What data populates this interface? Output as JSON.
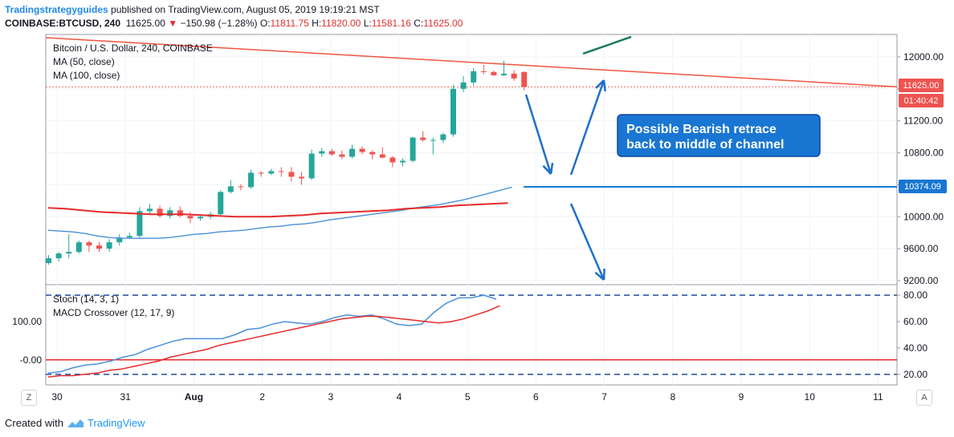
{
  "header": {
    "publisher": "Tradingstrategyguides",
    "published_text": "published on TradingView.com, August 05, 2019 19:19:21 MST",
    "symbol": "COINBASE:BTCUSD, 240",
    "last": "11625.00",
    "direction_icon": "down-triangle-icon",
    "change": "−150.98 (−1.28%)",
    "open_label": "O:",
    "open": "11811.75",
    "high_label": "H:",
    "high": "11820.00",
    "low_label": "L:",
    "low": "11581.16",
    "close_label": "C:",
    "close": "11625.00"
  },
  "legend": {
    "instrument": "Bitcoin / U.S. Dollar, 240, COINBASE",
    "ma50": "MA (50, close)",
    "ma100": "MA (100, close)",
    "stoch": "Stoch (14, 3, 1)",
    "macd": "MACD Crossover (12, 17, 9)"
  },
  "badges": {
    "price": "11625.00",
    "countdown": "01:40:42",
    "level": "10374.09"
  },
  "annotation": {
    "text_line1": "Possible Bearish retrace",
    "text_line2": "back to middle of channel"
  },
  "footer": {
    "created_with": "Created with",
    "brand": "TradingView"
  },
  "buttons": {
    "left": "Z",
    "right": "A"
  },
  "colors": {
    "up": "#26a69a",
    "down": "#ef5350",
    "ma50": "#4a90d9",
    "ma100": "#e52a2a",
    "trendline": "#f0553f",
    "level": "#1976d2",
    "annotation_bg": "#1976d2"
  },
  "chart_data": [
    {
      "type": "candlestick",
      "title": "Bitcoin / U.S. Dollar, 240, COINBASE",
      "y_axis_ticks": [
        "12000.00",
        "11600.00",
        "11200.00",
        "10800.00",
        "10400.00",
        "10000.00",
        "9600.00",
        "9200.00"
      ],
      "ylim": [
        9150,
        12280
      ],
      "x_axis_ticks": [
        "30",
        "31",
        "Aug",
        "2",
        "3",
        "4",
        "5",
        "6",
        "7",
        "8",
        "9",
        "10",
        "11"
      ],
      "candles": [
        [
          9420,
          9520,
          9400,
          9480
        ],
        [
          9480,
          9560,
          9440,
          9540
        ],
        [
          9540,
          9780,
          9480,
          9560
        ],
        [
          9560,
          9700,
          9540,
          9680
        ],
        [
          9680,
          9700,
          9560,
          9640
        ],
        [
          9640,
          9680,
          9560,
          9600
        ],
        [
          9600,
          9720,
          9560,
          9680
        ],
        [
          9680,
          9780,
          9640,
          9740
        ],
        [
          9740,
          9800,
          9720,
          9760
        ],
        [
          9760,
          10120,
          9740,
          10070
        ],
        [
          10070,
          10160,
          10040,
          10100
        ],
        [
          10100,
          10140,
          9990,
          10010
        ],
        [
          10010,
          10120,
          9980,
          10080
        ],
        [
          10080,
          10130,
          9990,
          10010
        ],
        [
          10010,
          10060,
          9920,
          9980
        ],
        [
          9980,
          10030,
          9950,
          10000
        ],
        [
          10000,
          10060,
          9970,
          10030
        ],
        [
          10030,
          10330,
          10020,
          10310
        ],
        [
          10310,
          10460,
          10290,
          10380
        ],
        [
          10380,
          10410,
          10330,
          10370
        ],
        [
          10370,
          10590,
          10350,
          10550
        ],
        [
          10550,
          10570,
          10500,
          10540
        ],
        [
          10540,
          10600,
          10520,
          10570
        ],
        [
          10570,
          10620,
          10500,
          10560
        ],
        [
          10560,
          10620,
          10440,
          10500
        ],
        [
          10500,
          10560,
          10400,
          10480
        ],
        [
          10480,
          10840,
          10460,
          10790
        ],
        [
          10790,
          10860,
          10750,
          10820
        ],
        [
          10820,
          10850,
          10760,
          10780
        ],
        [
          10780,
          10830,
          10720,
          10750
        ],
        [
          10750,
          10900,
          10730,
          10850
        ],
        [
          10850,
          10880,
          10780,
          10810
        ],
        [
          10810,
          10830,
          10720,
          10780
        ],
        [
          10780,
          10870,
          10730,
          10740
        ],
        [
          10740,
          10760,
          10620,
          10680
        ],
        [
          10680,
          10730,
          10630,
          10700
        ],
        [
          10700,
          11000,
          10680,
          10990
        ],
        [
          10990,
          11070,
          10940,
          10960
        ],
        [
          10960,
          10990,
          10780,
          10960
        ],
        [
          10960,
          11050,
          10920,
          11030
        ],
        [
          11030,
          11650,
          11000,
          11600
        ],
        [
          11600,
          11760,
          11560,
          11680
        ],
        [
          11680,
          11860,
          11640,
          11820
        ],
        [
          11820,
          11900,
          11780,
          11810
        ],
        [
          11810,
          11830,
          11760,
          11770
        ],
        [
          11770,
          11950,
          11760,
          11790
        ],
        [
          11790,
          11830,
          11700,
          11730
        ],
        [
          11810,
          11820,
          11581,
          11625
        ]
      ],
      "ma50": [
        9830,
        9820,
        9810,
        9790,
        9760,
        9740,
        9730,
        9730,
        9730,
        9730,
        9740,
        9760,
        9780,
        9790,
        9810,
        9820,
        9830,
        9850,
        9870,
        9880,
        9900,
        9910,
        9930,
        9960,
        9980,
        10000,
        10020,
        10040,
        10060,
        10080,
        10110,
        10130,
        10150,
        10180,
        10210,
        10250,
        10290,
        10330,
        10370
      ],
      "ma100": [
        10110,
        10100,
        10080,
        10060,
        10050,
        10040,
        10030,
        10030,
        10030,
        10020,
        10010,
        10000,
        10000,
        10000,
        10010,
        10020,
        10040,
        10050,
        10060,
        10070,
        10080,
        10100,
        10110,
        10120,
        10140,
        10150,
        10160,
        10170
      ],
      "level": 10374.09,
      "trendline": {
        "from": 12240,
        "to": 11625
      },
      "annotation_arrows": [
        "down",
        "up",
        "down"
      ]
    },
    {
      "type": "line",
      "title": "Stoch (14, 3, 1) / MACD Crossover (12, 17, 9)",
      "y_axis_ticks_right": [
        "80.00",
        "60.00",
        "40.00",
        "20.00"
      ],
      "y_axis_ticks_left": [
        "100.00",
        "-0.00"
      ],
      "ylim": [
        12,
        88
      ],
      "hlines_dashed": [
        80,
        20
      ],
      "hline_zero": "-0.00",
      "stoch": [
        21,
        22,
        25,
        27,
        28,
        30,
        33,
        35,
        39,
        42,
        45,
        47,
        47,
        47,
        47,
        50,
        54,
        55,
        58,
        60,
        59,
        58,
        60,
        63,
        65,
        64,
        65,
        62,
        58,
        57,
        58,
        67,
        74,
        78,
        78,
        80,
        77
      ],
      "macd": [
        18,
        19,
        19,
        20,
        21,
        23,
        24,
        26,
        28,
        30,
        33,
        35,
        37,
        39,
        42,
        44,
        46,
        48,
        50,
        52,
        54,
        56,
        58,
        60,
        62,
        63,
        64,
        64,
        63,
        62,
        61,
        60,
        59,
        60,
        62,
        65,
        68,
        72
      ]
    }
  ]
}
